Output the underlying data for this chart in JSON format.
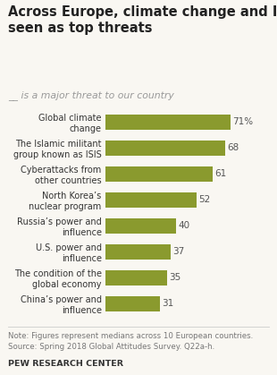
{
  "title": "Across Europe, climate change and ISIS\nseen as top threats",
  "subtitle_line": "__ is a major threat to our country",
  "categories": [
    "Global climate\nchange",
    "The Islamic militant\ngroup known as ISIS",
    "Cyberattacks from\nother countries",
    "North Korea’s\nnuclear program",
    "Russia’s power and\ninfluence",
    "U.S. power and\ninfluence",
    "The condition of the\nglobal economy",
    "China’s power and\ninfluence"
  ],
  "values": [
    71,
    68,
    61,
    52,
    40,
    37,
    35,
    31
  ],
  "value_labels": [
    "71%",
    "68",
    "61",
    "52",
    "40",
    "37",
    "35",
    "31"
  ],
  "bar_color": "#8a9a2e",
  "background_color": "#f9f7f2",
  "title_color": "#222222",
  "subtitle_color": "#999999",
  "note_text": "Note: Figures represent medians across 10 European countries.\nSource: Spring 2018 Global Attitudes Survey. Q22a-h.",
  "source_label": "PEW RESEARCH CENTER",
  "xlim": [
    0,
    85
  ]
}
